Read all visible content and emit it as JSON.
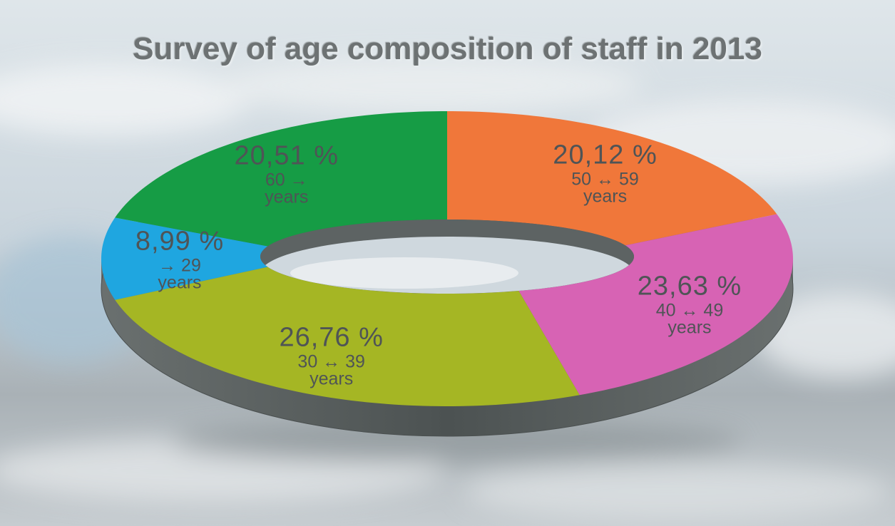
{
  "chart_data": {
    "type": "donut",
    "title": "Survey of age composition of staff in 2013",
    "categories": [
      "50 ↔ 59 years",
      "40 ↔ 49 years",
      "30 ↔ 39 years",
      "→ 29 years",
      "60 → years"
    ],
    "values": [
      20.12,
      23.63,
      26.76,
      8.99,
      20.51
    ],
    "value_labels": [
      "20,12 %",
      "23,63 %",
      "26,76 %",
      "8,99 %",
      "20,51 %"
    ],
    "colors": [
      "#f0773a",
      "#d763b4",
      "#a5b624",
      "#1fa6e0",
      "#169c45"
    ]
  }
}
